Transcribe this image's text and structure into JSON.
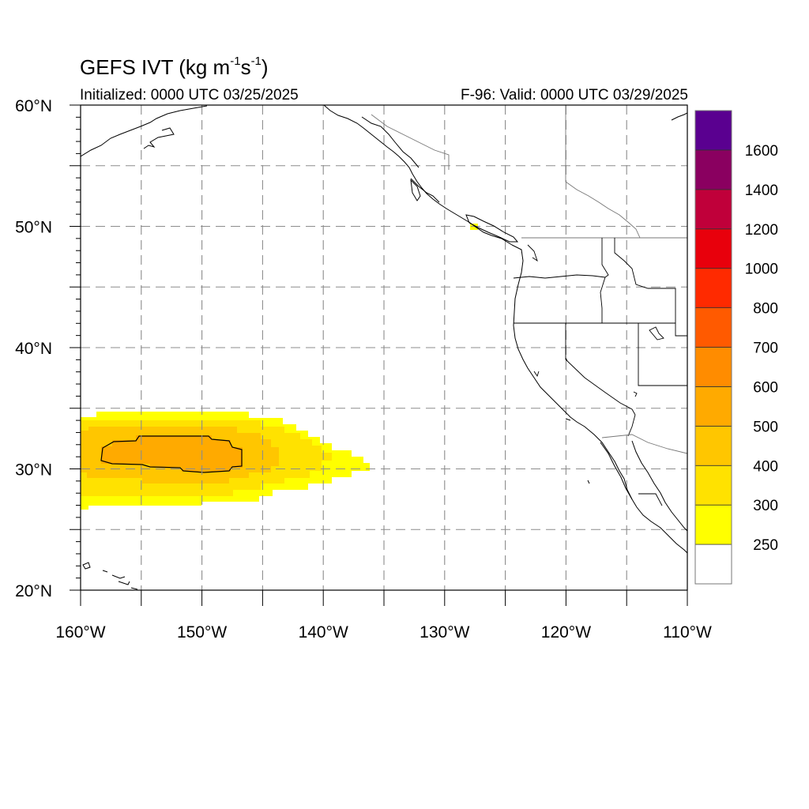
{
  "title": {
    "main": "GEFS IVT (kg m",
    "sup1": "-1",
    "mid": "s",
    "sup2": "-1",
    "end": ")"
  },
  "initialized": "Initialized: 0000 UTC 03/25/2025",
  "valid": "F-96: Valid: 0000 UTC 03/29/2025",
  "map": {
    "lon_range": [
      -160,
      -110
    ],
    "lat_range": [
      20,
      60
    ],
    "lon_ticks": [
      {
        "value": -160,
        "label": "160°W"
      },
      {
        "value": -150,
        "label": "150°W"
      },
      {
        "value": -140,
        "label": "140°W"
      },
      {
        "value": -130,
        "label": "130°W"
      },
      {
        "value": -120,
        "label": "120°W"
      },
      {
        "value": -110,
        "label": "110°W"
      }
    ],
    "lat_ticks": [
      {
        "value": 60,
        "label": "60°N"
      },
      {
        "value": 50,
        "label": "50°N"
      },
      {
        "value": 40,
        "label": "40°N"
      },
      {
        "value": 30,
        "label": "30°N"
      },
      {
        "value": 20,
        "label": "20°N"
      }
    ],
    "grid_step_deg": 5,
    "grid": true
  },
  "colorbar": {
    "levels": [
      "250",
      "300",
      "400",
      "500",
      "600",
      "700",
      "800",
      "1000",
      "1200",
      "1400",
      "1600"
    ],
    "colors": [
      "#ffffff",
      "#ffff00",
      "#ffe200",
      "#ffc600",
      "#ffaa00",
      "#ff8c00",
      "#ff5a00",
      "#ff2a00",
      "#e8000c",
      "#c0003a",
      "#8a0060",
      "#5a0090"
    ]
  },
  "chart_data": {
    "type": "heatmap",
    "variable": "IVT",
    "units": "kg m-1 s-1",
    "features": [
      {
        "region": "central North Pacific plume",
        "lon": [
          -160,
          -136.5
        ],
        "lat": [
          27,
          34.5
        ],
        "ivt_range": [
          250,
          600
        ],
        "core_ivt_range": [
          500,
          600
        ],
        "core_lon": [
          -158.5,
          -146.5
        ],
        "core_lat": [
          29.7,
          32.8
        ]
      },
      {
        "region": "off Vancouver Island",
        "lon": -127.5,
        "lat": 50,
        "ivt_range": [
          250,
          300
        ]
      }
    ]
  }
}
